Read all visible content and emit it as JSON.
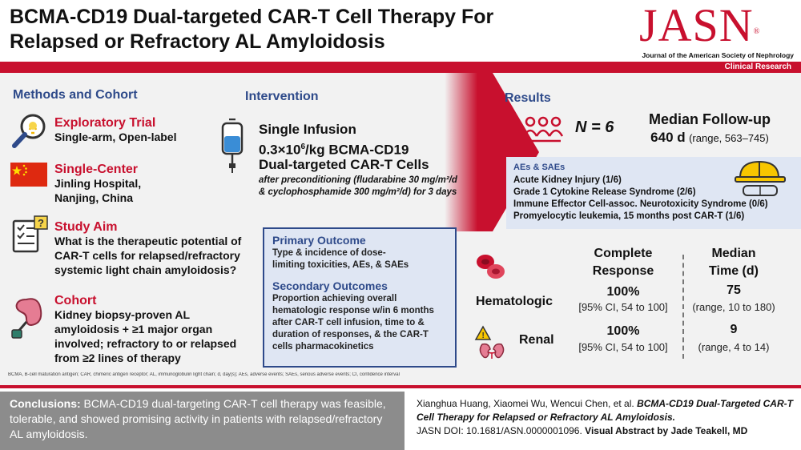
{
  "header": {
    "title_line1": "BCMA-CD19 Dual-targeted CAR-T Cell Therapy For",
    "title_line2": "Relapsed or Refractory AL Amyloidosis",
    "journal_logo": "JASN",
    "journal_name": "Journal of the American Society of Nephrology",
    "category": "Clinical Research"
  },
  "methods": {
    "heading": "Methods and Cohort",
    "items": [
      {
        "title": "Exploratory Trial",
        "lines": [
          "Single-arm, Open-label"
        ],
        "icon": "lightbulb-magnifier-icon"
      },
      {
        "title": "Single-Center",
        "lines": [
          "Jinling Hospital,",
          "Nanjing, China"
        ],
        "icon": "china-flag-icon"
      },
      {
        "title": "Study Aim",
        "lines": [
          "What is the therapeutic potential of",
          "CAR-T cells for relapsed/refractory",
          "systemic light chain amyloidosis?"
        ],
        "icon": "clipboard-question-icon"
      },
      {
        "title": "Cohort",
        "lines": [
          "Kidney biopsy-proven AL",
          "amyloidosis + ≥1 major organ",
          "involved; refractory to or relapsed",
          "from ≥2 lines of therapy"
        ],
        "icon": "kidney-biopsy-icon"
      }
    ]
  },
  "intervention": {
    "heading": "Intervention",
    "line1": "Single Infusion",
    "line2_pre": "0.3×10",
    "line2_sup": "6",
    "line2_post": "/kg BCMA-CD19",
    "line3": "Dual-targeted CAR-T Cells",
    "note_line1": "after preconditioning (fludarabine 30 mg/m²/d",
    "note_line2": "& cyclophosphamide 300 mg/m²/d) for 3 days",
    "icon": "iv-bag-icon"
  },
  "outcomes": {
    "primary_title": "Primary Outcome",
    "primary_lines": [
      "Type & incidence of dose-",
      "limiting toxicities, AEs, & SAEs"
    ],
    "secondary_title": "Secondary Outcomes",
    "secondary_lines": [
      "Proportion achieving overall",
      "hematologic response w/in 6 months",
      "after CAR-T cell infusion, time to &",
      "duration of responses, & the CAR-T",
      "cells pharmacokinetics"
    ]
  },
  "results": {
    "heading": "Results",
    "n_label": "N = 6",
    "followup_title": "Median Follow-up",
    "followup_value": "640 d",
    "followup_range": "(range, 563–745)",
    "aes_title": "AEs & SAEs",
    "aes": [
      "Acute Kidney Injury (1/6)",
      "Grade 1 Cytokine Release Syndrome (2/6)",
      "Immune Effector Cell-assoc. Neurotoxicity Syndrome (0/6)",
      "Promyelocytic leukemia, 15 months post CAR-T (1/6)"
    ],
    "col1_head1": "Complete",
    "col1_head2": "Response",
    "col2_head1": "Median",
    "col2_head2": "Time (d)",
    "rows": [
      {
        "label": "Hematologic",
        "cr": "100%",
        "cr_ci": "[95% CI, 54 to 100]",
        "time": "75",
        "time_range": "(range, 10 to 180)"
      },
      {
        "label": "Renal",
        "cr": "100%",
        "cr_ci": "[95% CI, 54 to 100]",
        "time": "9",
        "time_range": "(range, 4 to 14)"
      }
    ]
  },
  "footnote": "BCMA, B-cell maturation antigen; CAR, chimeric antigen receptor; AL, immunoglobulin light chain; d, day(s); AEs, adverse events; SAEs, serious adverse events; CI, confidence interval",
  "conclusions": {
    "label": "Conclusions:",
    "text": " BCMA-CD19 dual-targeting CAR-T cell therapy was feasible, tolerable, and showed promising activity in patients with relapsed/refractory AL amyloidosis."
  },
  "citation": {
    "authors": "Xianghua Huang, Xiaomei Wu, Wencui Chen, et al. ",
    "title": "BCMA-CD19 Dual-Targeted CAR-T Cell Therapy for Relapsed or Refractory AL Amyloidosis.",
    "doi": "JASN DOI: 10.1681/ASN.0000001096.",
    "credit": "Visual Abstract by Jade Teakell, MD"
  },
  "colors": {
    "accent_red": "#c8102e",
    "accent_blue": "#2e4a8a",
    "box_blue": "#dfe6f3",
    "conclusions_gray": "#8c8c8c"
  }
}
